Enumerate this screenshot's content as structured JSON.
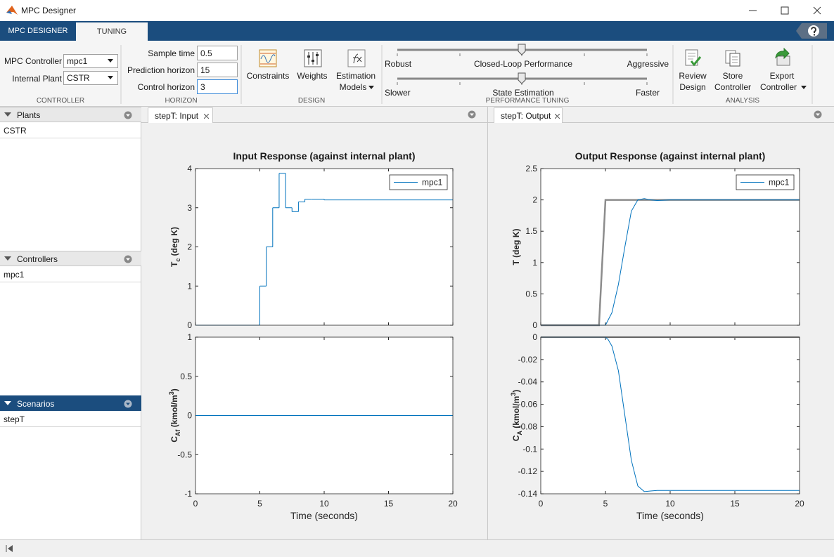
{
  "window": {
    "title": "MPC Designer"
  },
  "tabs": [
    "MPC DESIGNER",
    "TUNING"
  ],
  "toolstrip": {
    "controller": {
      "label": "CONTROLLER",
      "fields": [
        {
          "label": "MPC Controller",
          "value": "mpc1"
        },
        {
          "label": "Internal Plant",
          "value": "CSTR"
        }
      ]
    },
    "horizon": {
      "label": "HORIZON",
      "fields": [
        {
          "label": "Sample time",
          "value": "0.5"
        },
        {
          "label": "Prediction horizon",
          "value": "15"
        },
        {
          "label": "Control horizon",
          "value": "3"
        }
      ]
    },
    "design": {
      "label": "DESIGN",
      "buttons": [
        {
          "lines": [
            "Constraints"
          ]
        },
        {
          "lines": [
            "Weights"
          ]
        },
        {
          "lines": [
            "Estimation",
            "Models"
          ]
        }
      ]
    },
    "performance": {
      "label": "PERFORMANCE TUNING",
      "sliders": [
        {
          "left": "Robust",
          "center": "Closed-Loop Performance",
          "right": "Aggressive"
        },
        {
          "left": "Slower",
          "center": "State Estimation",
          "right": "Faster"
        }
      ]
    },
    "analysis": {
      "label": "ANALYSIS",
      "buttons": [
        {
          "lines": [
            "Review",
            "Design"
          ]
        },
        {
          "lines": [
            "Store",
            "Controller"
          ]
        },
        {
          "lines": [
            "Export",
            "Controller"
          ]
        }
      ]
    }
  },
  "browser": [
    {
      "title": "Plants",
      "items": [
        "CSTR"
      ]
    },
    {
      "title": "Controllers",
      "items": [
        "mpc1"
      ]
    },
    {
      "title": "Scenarios",
      "items": [
        "stepT"
      ]
    }
  ],
  "documents": [
    {
      "tab": "stepT: Input"
    },
    {
      "tab": "stepT: Output"
    }
  ],
  "chart_data": [
    {
      "type": "line",
      "title": "Input Response (against internal plant)",
      "ylabel": [
        {
          "text": "T"
        },
        {
          "text": "c",
          "script": "sub"
        },
        {
          "text": " (deg K)"
        }
      ],
      "xlim": [
        0,
        20
      ],
      "ylim": [
        0,
        4
      ],
      "xticks": [
        0,
        5,
        10,
        15,
        20
      ],
      "yticks": [
        0,
        1,
        2,
        3,
        4
      ],
      "show_xtick_labels": false,
      "legend": "upper right",
      "series": [
        {
          "name": "mpc1",
          "color": "#0072bd",
          "drawstyle": "steps-post",
          "x": [
            0,
            5,
            5.5,
            6,
            6.5,
            7,
            7.5,
            8,
            8.5,
            9,
            10
          ],
          "values": [
            0,
            1,
            2,
            3,
            3.88,
            3,
            2.9,
            3.15,
            3.22,
            3.22,
            3.2
          ]
        }
      ]
    },
    {
      "type": "line",
      "xlabel": "Time (seconds)",
      "ylabel": [
        {
          "text": "C"
        },
        {
          "text": "Af",
          "script": "sub"
        },
        {
          "text": " (kmol/m"
        },
        {
          "text": "3",
          "script": "super"
        },
        {
          "text": ")"
        }
      ],
      "xlim": [
        0,
        20
      ],
      "ylim": [
        -1,
        1
      ],
      "xticks": [
        0,
        5,
        10,
        15,
        20
      ],
      "yticks": [
        -1,
        -0.5,
        0,
        0.5,
        1
      ],
      "series": [
        {
          "color": "#0072bd",
          "drawstyle": "steps-post",
          "x": [
            0
          ],
          "values": [
            0
          ]
        }
      ]
    },
    {
      "type": "line",
      "title": "Output Response (against internal plant)",
      "ylabel": [
        {
          "text": "T (deg K)"
        }
      ],
      "xlim": [
        0,
        20
      ],
      "ylim": [
        0,
        2.5
      ],
      "xticks": [
        0,
        5,
        10,
        15,
        20
      ],
      "yticks": [
        0,
        0.5,
        1,
        1.5,
        2,
        2.5
      ],
      "show_xtick_labels": false,
      "legend": "upper right",
      "series": [
        {
          "color": "#8c8c8c",
          "width": 2.5,
          "x": [
            0,
            4.5,
            5,
            20
          ],
          "values": [
            0,
            0,
            2,
            2
          ]
        },
        {
          "name": "mpc1",
          "color": "#0072bd",
          "x": [
            0,
            5,
            5.5,
            6,
            6.5,
            7,
            7.5,
            8,
            8.5,
            9,
            10,
            20
          ],
          "values": [
            0,
            0,
            0.2,
            0.65,
            1.25,
            1.82,
            2.0,
            2.02,
            2.0,
            1.99,
            2.0,
            2.0
          ]
        }
      ]
    },
    {
      "type": "line",
      "xlabel": "Time (seconds)",
      "ylabel": [
        {
          "text": "C"
        },
        {
          "text": "A",
          "script": "sub"
        },
        {
          "text": " (kmol/m"
        },
        {
          "text": "3",
          "script": "super"
        },
        {
          "text": ")"
        }
      ],
      "xlim": [
        0,
        20
      ],
      "ylim": [
        -0.14,
        0
      ],
      "xticks": [
        0,
        5,
        10,
        15,
        20
      ],
      "yticks": [
        -0.14,
        -0.12,
        -0.1,
        -0.08,
        -0.06,
        -0.04,
        -0.02,
        0
      ],
      "series": [
        {
          "color": "#8c8c8c",
          "width": 2,
          "x": [
            0,
            20
          ],
          "values": [
            0,
            0
          ]
        },
        {
          "name": "mpc1",
          "color": "#0072bd",
          "x": [
            0,
            5,
            5.2,
            5.5,
            6,
            6.5,
            7,
            7.5,
            8,
            8.5,
            9,
            20
          ],
          "values": [
            0,
            0,
            -0.002,
            -0.008,
            -0.03,
            -0.07,
            -0.11,
            -0.133,
            -0.138,
            -0.1375,
            -0.137,
            -0.137
          ]
        }
      ]
    }
  ]
}
